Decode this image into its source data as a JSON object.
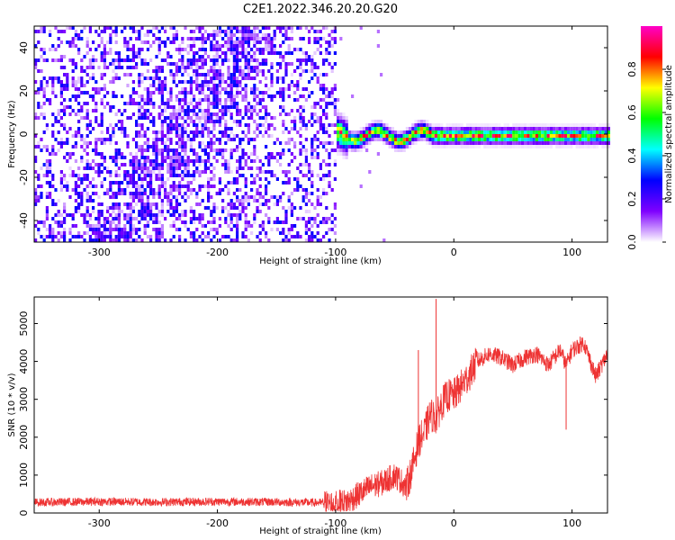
{
  "figure_title": "C2E1.2022.346.20.20.G20",
  "chart_data": [
    {
      "type": "heatmap",
      "title": "",
      "xlabel": "Height of straight line (km)",
      "ylabel": "Frequency (Hz)",
      "xlim": [
        -355,
        130
      ],
      "ylim": [
        -50,
        50
      ],
      "x_ticks": [
        -300,
        -200,
        -100,
        0,
        100
      ],
      "y_ticks": [
        -40,
        -20,
        0,
        20,
        40
      ],
      "colorbar": {
        "label": "Normalized spectral amplitude",
        "range": [
          0,
          1
        ],
        "ticks": [
          0.0,
          0.2,
          0.4,
          0.6,
          0.8
        ],
        "tick_labels": [
          "0.0",
          "0.2",
          "0.4",
          "0.6",
          "0.8"
        ],
        "colormap": [
          "#ffffff",
          "#7f00ff",
          "#0000ff",
          "#00ffff",
          "#00ff00",
          "#ffff00",
          "#ff0000",
          "#ff00c8"
        ]
      },
      "description_values": {
        "noise_region_x": [
          -355,
          -100
        ],
        "signal_onset_x": -110,
        "signal_track_frequency_hz": 0,
        "signal_track_peak_amplitude": 0.95
      }
    },
    {
      "type": "line",
      "title": "",
      "xlabel": "Height of straight line (km)",
      "ylabel": "SNR (10 * v/v)",
      "xlim": [
        -355,
        130
      ],
      "ylim": [
        0,
        5700
      ],
      "x_ticks": [
        -300,
        -200,
        -100,
        0,
        100
      ],
      "y_ticks": [
        0,
        1000,
        2000,
        3000,
        4000,
        5000
      ],
      "series": [
        {
          "color": "#ee3333",
          "x": [
            -355,
            -300,
            -250,
            -200,
            -150,
            -110,
            -100,
            -90,
            -80,
            -70,
            -60,
            -50,
            -40,
            -35,
            -30,
            -25,
            -20,
            -15,
            -10,
            -5,
            0,
            10,
            20,
            30,
            40,
            50,
            60,
            70,
            80,
            90,
            95,
            100,
            110,
            120,
            130
          ],
          "y": [
            280,
            300,
            290,
            300,
            290,
            270,
            250,
            300,
            500,
            700,
            800,
            1000,
            700,
            1200,
            1900,
            2100,
            2600,
            2500,
            2900,
            3100,
            3100,
            3500,
            4000,
            4200,
            4100,
            3900,
            4100,
            4200,
            3900,
            4300,
            3900,
            4300,
            4500,
            3600,
            4200
          ]
        }
      ],
      "notable_spikes": [
        {
          "x": -15,
          "y": 5650
        },
        {
          "x": -30,
          "y": 4300
        },
        {
          "x": 95,
          "y": 2200
        }
      ]
    }
  ]
}
